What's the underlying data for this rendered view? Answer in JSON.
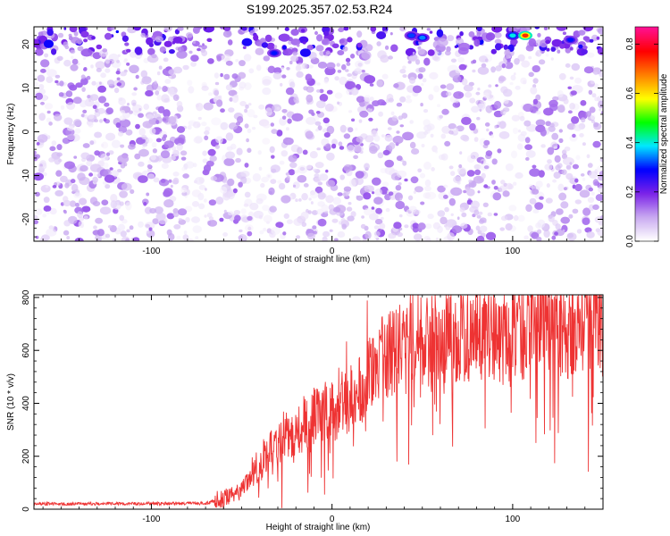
{
  "page": {
    "title": "S199.2025.357.02.53.R24"
  },
  "chart_data": [
    {
      "type": "heatmap",
      "title": "S199.2025.357.02.53.R24",
      "xlabel": "Height of straight line (km)",
      "ylabel": "Frequency (Hz)",
      "xlim": [
        -165,
        150
      ],
      "ylim": [
        -25,
        24
      ],
      "x_ticks": [
        -100,
        0,
        100
      ],
      "y_ticks": [
        -20,
        -10,
        0,
        10,
        20
      ],
      "colorbar": {
        "label": "Normalized spectral amplitude",
        "range": [
          0.0,
          0.87
        ],
        "ticks": [
          "0.0",
          "0.2",
          "0.4",
          "0.6",
          "0.8"
        ],
        "colors": [
          "#ffffff",
          "#c8a8f0",
          "#7a22e8",
          "#0000ff",
          "#00e8ff",
          "#00ff00",
          "#ffff00",
          "#ff8000",
          "#ff0000",
          "#ff1090"
        ]
      },
      "hotspots": [
        {
          "x": -32,
          "y": 18,
          "value": 0.3
        },
        {
          "x": 44,
          "y": 22,
          "value": 0.32
        },
        {
          "x": 50,
          "y": 21.5,
          "value": 0.35
        },
        {
          "x": 100,
          "y": 22,
          "value": 0.4
        },
        {
          "x": 107,
          "y": 22,
          "value": 0.75
        },
        {
          "x": 132,
          "y": 21,
          "value": 0.3
        }
      ]
    },
    {
      "type": "line",
      "xlabel": "Height of straight line (km)",
      "ylabel": "SNR (10 * v/v)",
      "xlim": [
        -165,
        150
      ],
      "ylim": [
        0,
        810
      ],
      "x_ticks": [
        -100,
        0,
        100
      ],
      "y_ticks": [
        0,
        200,
        400,
        600,
        800
      ],
      "color": "#ee3333",
      "trend": [
        {
          "x": -165,
          "y": 20
        },
        {
          "x": -70,
          "y": 22
        },
        {
          "x": -60,
          "y": 40
        },
        {
          "x": -50,
          "y": 70
        },
        {
          "x": -40,
          "y": 170
        },
        {
          "x": -30,
          "y": 240
        },
        {
          "x": -20,
          "y": 310
        },
        {
          "x": -10,
          "y": 350
        },
        {
          "x": 0,
          "y": 370
        },
        {
          "x": 10,
          "y": 420
        },
        {
          "x": 20,
          "y": 520
        },
        {
          "x": 30,
          "y": 580
        },
        {
          "x": 45,
          "y": 620
        },
        {
          "x": 60,
          "y": 650
        },
        {
          "x": 80,
          "y": 660
        },
        {
          "x": 100,
          "y": 670
        },
        {
          "x": 120,
          "y": 680
        },
        {
          "x": 150,
          "y": 690
        }
      ]
    }
  ]
}
